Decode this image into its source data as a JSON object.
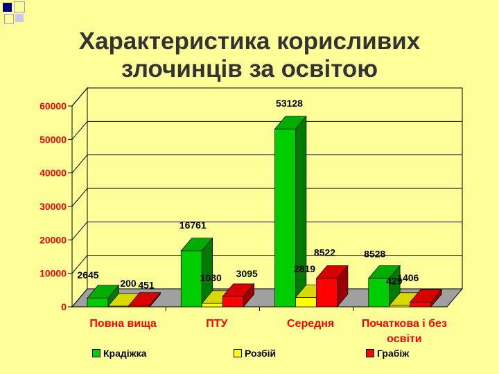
{
  "title_lines": [
    "Характеристика корисливих",
    "злочинців за освітою"
  ],
  "chart_data": {
    "type": "bar",
    "categories": [
      "Повна вища",
      "ПТУ",
      "Середня",
      "Початкова і без освіти"
    ],
    "category_lines": [
      [
        "Повна вища"
      ],
      [
        "ПТУ"
      ],
      [
        "Середня"
      ],
      [
        "Початкова і без",
        "освіти"
      ]
    ],
    "series": [
      {
        "name": "Крадіжка",
        "values": [
          2645,
          16761,
          53128,
          8528
        ],
        "color": "#00CC00"
      },
      {
        "name": "Розбій",
        "values": [
          200,
          1030,
          2819,
          429
        ],
        "color": "#FFFF00"
      },
      {
        "name": "Грабіж",
        "values": [
          451,
          3095,
          8522,
          1406
        ],
        "color": "#FF0000"
      }
    ],
    "yticks": [
      "0",
      "10000",
      "20000",
      "30000",
      "40000",
      "50000",
      "60000"
    ],
    "ylim": [
      0,
      60000
    ],
    "grid": true,
    "legend_position": "bottom"
  }
}
